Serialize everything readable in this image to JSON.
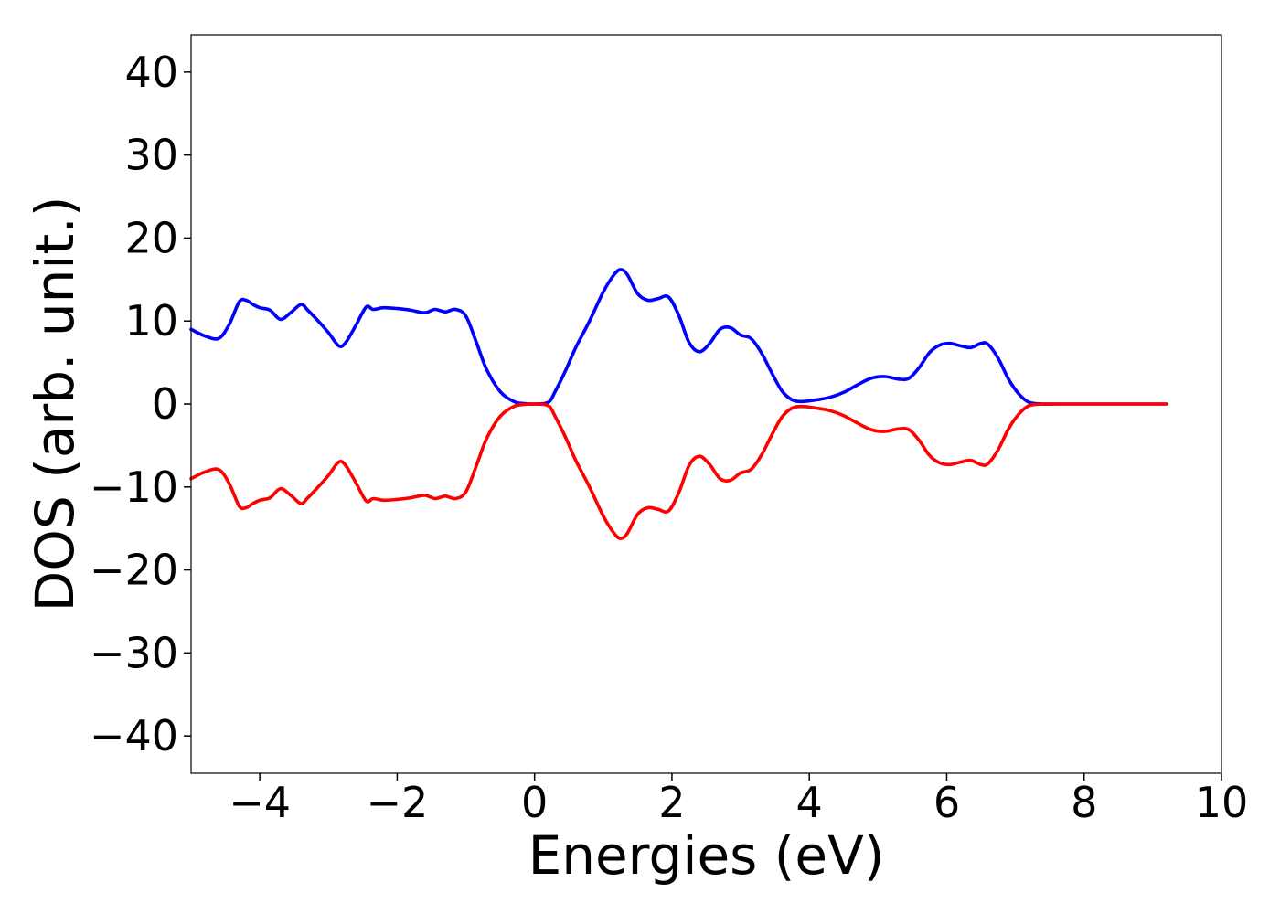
{
  "chart_data": {
    "type": "line",
    "title": "",
    "xlabel": "Energies (eV)",
    "ylabel": "DOS (arb. unit.)",
    "xlim": [
      -5,
      10
    ],
    "ylim": [
      -44.5,
      44.5
    ],
    "x_ticks": [
      -4,
      -2,
      0,
      2,
      4,
      6,
      8,
      10
    ],
    "y_ticks": [
      -40,
      -30,
      -20,
      -10,
      0,
      10,
      20,
      30,
      40
    ],
    "x_tick_labels": [
      "−4",
      "−2",
      "0",
      "2",
      "4",
      "6",
      "8",
      "10"
    ],
    "y_tick_labels": [
      "−40",
      "−30",
      "−20",
      "−10",
      "0",
      "10",
      "20",
      "30",
      "40"
    ],
    "grid": false,
    "legend": "none",
    "series": [
      {
        "color": "#0000ff",
        "x": [
          -5.0,
          -4.8,
          -4.6,
          -4.45,
          -4.3,
          -4.2,
          -4.1,
          -4.0,
          -3.85,
          -3.7,
          -3.55,
          -3.4,
          -3.3,
          -3.15,
          -3.0,
          -2.85,
          -2.75,
          -2.6,
          -2.45,
          -2.35,
          -2.2,
          -2.0,
          -1.8,
          -1.6,
          -1.45,
          -1.3,
          -1.15,
          -1.0,
          -0.85,
          -0.7,
          -0.5,
          -0.3,
          -0.15,
          0.0,
          0.2,
          0.3,
          0.45,
          0.6,
          0.8,
          1.0,
          1.15,
          1.25,
          1.35,
          1.5,
          1.65,
          1.8,
          1.95,
          2.1,
          2.25,
          2.4,
          2.55,
          2.7,
          2.85,
          3.0,
          3.15,
          3.3,
          3.45,
          3.6,
          3.75,
          3.9,
          4.1,
          4.3,
          4.5,
          4.7,
          4.9,
          5.1,
          5.3,
          5.45,
          5.6,
          5.75,
          5.9,
          6.05,
          6.2,
          6.35,
          6.5,
          6.6,
          6.75,
          6.9,
          7.05,
          7.2,
          7.4,
          7.6,
          8.0,
          8.5,
          9.0,
          9.2
        ],
        "y": [
          9.0,
          8.2,
          7.9,
          9.5,
          12.3,
          12.5,
          12.0,
          11.6,
          11.3,
          10.2,
          11.0,
          12.0,
          11.3,
          10.0,
          8.6,
          7.0,
          7.4,
          9.5,
          11.7,
          11.4,
          11.6,
          11.5,
          11.3,
          11.0,
          11.4,
          11.1,
          11.4,
          10.6,
          7.5,
          4.2,
          1.5,
          0.3,
          0.05,
          0.0,
          0.2,
          1.5,
          4.0,
          6.8,
          10.0,
          13.5,
          15.5,
          16.2,
          15.6,
          13.3,
          12.5,
          12.7,
          12.9,
          10.7,
          7.4,
          6.3,
          7.3,
          9.0,
          9.2,
          8.3,
          7.9,
          6.2,
          3.8,
          1.6,
          0.5,
          0.3,
          0.5,
          0.8,
          1.4,
          2.3,
          3.1,
          3.3,
          3.0,
          3.1,
          4.4,
          6.2,
          7.1,
          7.3,
          7.0,
          6.8,
          7.3,
          7.2,
          5.5,
          3.0,
          1.2,
          0.2,
          0.0,
          0.0,
          0.0,
          0.0,
          0.0,
          0.0
        ]
      },
      {
        "color": "#ff0000",
        "x": [
          -5.0,
          -4.8,
          -4.6,
          -4.45,
          -4.3,
          -4.2,
          -4.1,
          -4.0,
          -3.85,
          -3.7,
          -3.55,
          -3.4,
          -3.3,
          -3.15,
          -3.0,
          -2.85,
          -2.75,
          -2.6,
          -2.45,
          -2.35,
          -2.2,
          -2.0,
          -1.8,
          -1.6,
          -1.45,
          -1.3,
          -1.15,
          -1.0,
          -0.85,
          -0.7,
          -0.5,
          -0.3,
          -0.15,
          0.0,
          0.2,
          0.3,
          0.45,
          0.6,
          0.8,
          1.0,
          1.15,
          1.25,
          1.35,
          1.5,
          1.65,
          1.8,
          1.95,
          2.1,
          2.25,
          2.4,
          2.55,
          2.7,
          2.85,
          3.0,
          3.15,
          3.3,
          3.45,
          3.6,
          3.75,
          3.9,
          4.1,
          4.3,
          4.5,
          4.7,
          4.9,
          5.1,
          5.3,
          5.45,
          5.6,
          5.75,
          5.9,
          6.05,
          6.2,
          6.35,
          6.5,
          6.6,
          6.75,
          6.9,
          7.05,
          7.2,
          7.4,
          7.6,
          8.0,
          8.5,
          9.0,
          9.2
        ],
        "y": [
          -9.0,
          -8.2,
          -7.9,
          -9.5,
          -12.3,
          -12.5,
          -12.0,
          -11.6,
          -11.3,
          -10.2,
          -11.0,
          -12.0,
          -11.3,
          -10.0,
          -8.6,
          -7.0,
          -7.4,
          -9.5,
          -11.7,
          -11.4,
          -11.6,
          -11.5,
          -11.3,
          -11.0,
          -11.4,
          -11.1,
          -11.4,
          -10.6,
          -7.5,
          -4.2,
          -1.5,
          -0.3,
          -0.05,
          0.0,
          -0.2,
          -1.5,
          -4.0,
          -6.8,
          -10.0,
          -13.5,
          -15.5,
          -16.2,
          -15.6,
          -13.3,
          -12.5,
          -12.7,
          -12.9,
          -10.7,
          -7.4,
          -6.3,
          -7.3,
          -9.0,
          -9.2,
          -8.3,
          -7.9,
          -6.2,
          -3.8,
          -1.6,
          -0.5,
          -0.3,
          -0.5,
          -0.8,
          -1.4,
          -2.3,
          -3.1,
          -3.3,
          -3.0,
          -3.1,
          -4.4,
          -6.2,
          -7.1,
          -7.3,
          -7.0,
          -6.8,
          -7.3,
          -7.2,
          -5.5,
          -3.0,
          -1.2,
          -0.2,
          0.0,
          0.0,
          0.0,
          0.0,
          0.0,
          0.0
        ]
      }
    ]
  }
}
